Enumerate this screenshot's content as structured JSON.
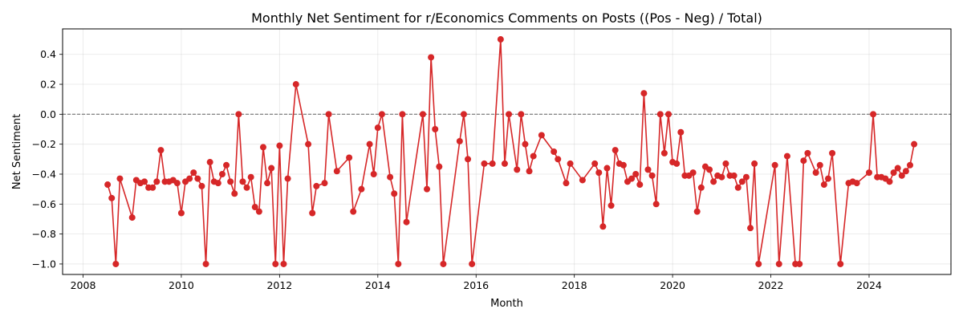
{
  "chart_data": {
    "type": "line",
    "title": "Monthly Net Sentiment for r/Economics Comments on Posts ((Pos - Neg) / Total)",
    "xlabel": "Month",
    "ylabel": "Net Sentiment",
    "x_ticks": [
      "2008",
      "2010",
      "2012",
      "2014",
      "2016",
      "2018",
      "2020",
      "2022",
      "2024"
    ],
    "y_ticks": [
      "−1.0",
      "−0.8",
      "−0.6",
      "−0.4",
      "−0.2",
      "0.0",
      "0.2",
      "0.4"
    ],
    "xlim": [
      "2007-08",
      "2025-09"
    ],
    "ylim": [
      -1.07,
      0.57
    ],
    "grid": true,
    "reference_line": {
      "y": 0.0,
      "style": "dashed",
      "color": "#808080"
    },
    "colors": {
      "series": "#d62728"
    },
    "series": [
      {
        "points": [
          [
            "2008-07",
            -0.47
          ],
          [
            "2008-08",
            -0.56
          ],
          [
            "2008-09",
            -1.0
          ],
          [
            "2008-10",
            -0.43
          ],
          [
            "2009-01",
            -0.69
          ],
          [
            "2009-02",
            -0.44
          ],
          [
            "2009-03",
            -0.46
          ],
          [
            "2009-04",
            -0.45
          ],
          [
            "2009-05",
            -0.49
          ],
          [
            "2009-06",
            -0.49
          ],
          [
            "2009-07",
            -0.45
          ],
          [
            "2009-08",
            -0.24
          ],
          [
            "2009-09",
            -0.45
          ],
          [
            "2009-10",
            -0.45
          ],
          [
            "2009-11",
            -0.44
          ],
          [
            "2009-12",
            -0.46
          ],
          [
            "2010-01",
            -0.66
          ],
          [
            "2010-02",
            -0.45
          ],
          [
            "2010-03",
            -0.43
          ],
          [
            "2010-04",
            -0.39
          ],
          [
            "2010-05",
            -0.43
          ],
          [
            "2010-06",
            -0.48
          ],
          [
            "2010-07",
            -1.0
          ],
          [
            "2010-08",
            -0.32
          ],
          [
            "2010-09",
            -0.45
          ],
          [
            "2010-10",
            -0.46
          ],
          [
            "2010-11",
            -0.4
          ],
          [
            "2010-12",
            -0.34
          ],
          [
            "2011-01",
            -0.45
          ],
          [
            "2011-02",
            -0.53
          ],
          [
            "2011-03",
            0.0
          ],
          [
            "2011-04",
            -0.45
          ],
          [
            "2011-05",
            -0.49
          ],
          [
            "2011-06",
            -0.42
          ],
          [
            "2011-07",
            -0.62
          ],
          [
            "2011-08",
            -0.65
          ],
          [
            "2011-09",
            -0.22
          ],
          [
            "2011-10",
            -0.46
          ],
          [
            "2011-11",
            -0.36
          ],
          [
            "2011-12",
            -1.0
          ],
          [
            "2012-01",
            -0.21
          ],
          [
            "2012-02",
            -1.0
          ],
          [
            "2012-03",
            -0.43
          ],
          [
            "2012-05",
            0.2
          ],
          [
            "2012-08",
            -0.2
          ],
          [
            "2012-09",
            -0.66
          ],
          [
            "2012-10",
            -0.48
          ],
          [
            "2012-12",
            -0.46
          ],
          [
            "2013-01",
            0.0
          ],
          [
            "2013-03",
            -0.38
          ],
          [
            "2013-06",
            -0.29
          ],
          [
            "2013-07",
            -0.65
          ],
          [
            "2013-09",
            -0.5
          ],
          [
            "2013-11",
            -0.2
          ],
          [
            "2013-12",
            -0.4
          ],
          [
            "2014-01",
            -0.09
          ],
          [
            "2014-02",
            0.0
          ],
          [
            "2014-04",
            -0.42
          ],
          [
            "2014-05",
            -0.53
          ],
          [
            "2014-06",
            -1.0
          ],
          [
            "2014-07",
            0.0
          ],
          [
            "2014-08",
            -0.72
          ],
          [
            "2014-12",
            0.0
          ],
          [
            "2015-01",
            -0.5
          ],
          [
            "2015-02",
            0.38
          ],
          [
            "2015-03",
            -0.1
          ],
          [
            "2015-04",
            -0.35
          ],
          [
            "2015-05",
            -1.0
          ],
          [
            "2015-09",
            -0.18
          ],
          [
            "2015-10",
            0.0
          ],
          [
            "2015-11",
            -0.3
          ],
          [
            "2015-12",
            -1.0
          ],
          [
            "2016-03",
            -0.33
          ],
          [
            "2016-05",
            -0.33
          ],
          [
            "2016-07",
            0.5
          ],
          [
            "2016-08",
            -0.33
          ],
          [
            "2016-09",
            0.0
          ],
          [
            "2016-11",
            -0.37
          ],
          [
            "2016-12",
            0.0
          ],
          [
            "2017-01",
            -0.2
          ],
          [
            "2017-02",
            -0.38
          ],
          [
            "2017-03",
            -0.28
          ],
          [
            "2017-05",
            -0.14
          ],
          [
            "2017-08",
            -0.25
          ],
          [
            "2017-09",
            -0.3
          ],
          [
            "2017-11",
            -0.46
          ],
          [
            "2017-12",
            -0.33
          ],
          [
            "2018-03",
            -0.44
          ],
          [
            "2018-06",
            -0.33
          ],
          [
            "2018-07",
            -0.39
          ],
          [
            "2018-08",
            -0.75
          ],
          [
            "2018-09",
            -0.36
          ],
          [
            "2018-10",
            -0.61
          ],
          [
            "2018-11",
            -0.24
          ],
          [
            "2018-12",
            -0.33
          ],
          [
            "2019-01",
            -0.34
          ],
          [
            "2019-02",
            -0.45
          ],
          [
            "2019-03",
            -0.43
          ],
          [
            "2019-04",
            -0.4
          ],
          [
            "2019-05",
            -0.47
          ],
          [
            "2019-06",
            0.14
          ],
          [
            "2019-07",
            -0.37
          ],
          [
            "2019-08",
            -0.41
          ],
          [
            "2019-09",
            -0.6
          ],
          [
            "2019-10",
            0.0
          ],
          [
            "2019-11",
            -0.26
          ],
          [
            "2019-12",
            0.0
          ],
          [
            "2020-01",
            -0.32
          ],
          [
            "2020-02",
            -0.33
          ],
          [
            "2020-03",
            -0.12
          ],
          [
            "2020-04",
            -0.41
          ],
          [
            "2020-05",
            -0.41
          ],
          [
            "2020-06",
            -0.39
          ],
          [
            "2020-07",
            -0.65
          ],
          [
            "2020-08",
            -0.49
          ],
          [
            "2020-09",
            -0.35
          ],
          [
            "2020-10",
            -0.37
          ],
          [
            "2020-11",
            -0.45
          ],
          [
            "2020-12",
            -0.41
          ],
          [
            "2021-01",
            -0.42
          ],
          [
            "2021-02",
            -0.33
          ],
          [
            "2021-03",
            -0.41
          ],
          [
            "2021-04",
            -0.41
          ],
          [
            "2021-05",
            -0.49
          ],
          [
            "2021-06",
            -0.45
          ],
          [
            "2021-07",
            -0.42
          ],
          [
            "2021-08",
            -0.76
          ],
          [
            "2021-09",
            -0.33
          ],
          [
            "2021-10",
            -1.0
          ],
          [
            "2022-02",
            -0.34
          ],
          [
            "2022-03",
            -1.0
          ],
          [
            "2022-05",
            -0.28
          ],
          [
            "2022-07",
            -1.0
          ],
          [
            "2022-08",
            -1.0
          ],
          [
            "2022-09",
            -0.31
          ],
          [
            "2022-10",
            -0.26
          ],
          [
            "2022-12",
            -0.39
          ],
          [
            "2023-01",
            -0.34
          ],
          [
            "2023-02",
            -0.47
          ],
          [
            "2023-03",
            -0.43
          ],
          [
            "2023-04",
            -0.26
          ],
          [
            "2023-06",
            -1.0
          ],
          [
            "2023-08",
            -0.46
          ],
          [
            "2023-09",
            -0.45
          ],
          [
            "2023-10",
            -0.46
          ],
          [
            "2024-01",
            -0.39
          ],
          [
            "2024-02",
            0.0
          ],
          [
            "2024-03",
            -0.42
          ],
          [
            "2024-04",
            -0.42
          ],
          [
            "2024-05",
            -0.43
          ],
          [
            "2024-06",
            -0.45
          ],
          [
            "2024-07",
            -0.39
          ],
          [
            "2024-08",
            -0.36
          ],
          [
            "2024-09",
            -0.41
          ],
          [
            "2024-10",
            -0.38
          ],
          [
            "2024-11",
            -0.34
          ],
          [
            "2024-12",
            -0.2
          ]
        ]
      }
    ]
  }
}
